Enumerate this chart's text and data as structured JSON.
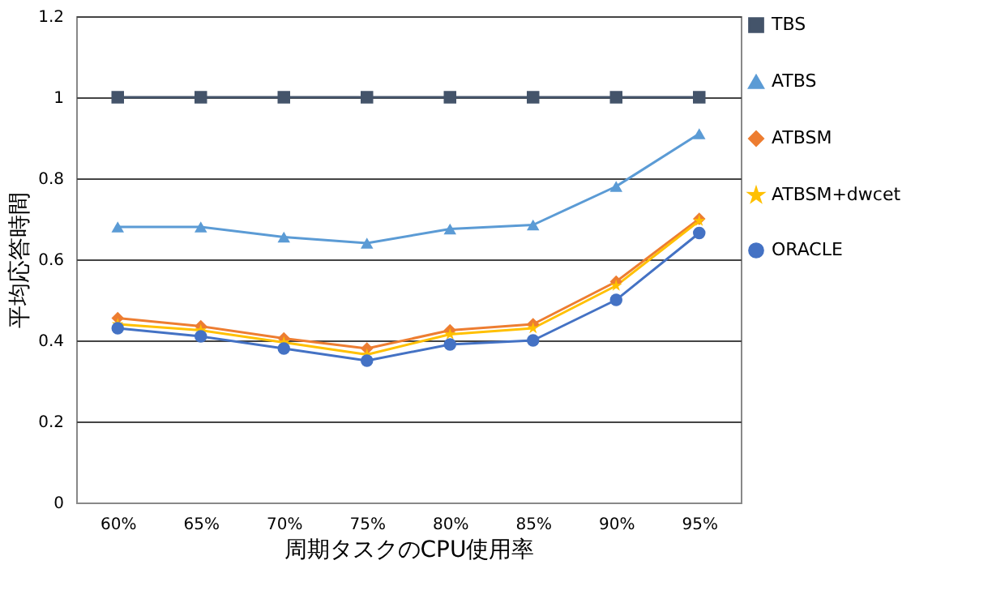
{
  "chart_data": {
    "type": "line",
    "xlabel": "周期タスクのCPU使用率",
    "ylabel": "平均応答時間",
    "categories": [
      "60%",
      "65%",
      "70%",
      "75%",
      "80%",
      "85%",
      "90%",
      "95%"
    ],
    "series": [
      {
        "name": "TBS",
        "color": "#44546a",
        "marker": "square",
        "values": [
          1,
          1,
          1,
          1,
          1,
          1,
          1,
          1
        ]
      },
      {
        "name": "ATBS",
        "color": "#5b9bd5",
        "marker": "triangle",
        "values": [
          0.68,
          0.68,
          0.655,
          0.64,
          0.675,
          0.685,
          0.78,
          0.91
        ]
      },
      {
        "name": "ATBSM",
        "color": "#ed7d31",
        "marker": "diamond",
        "values": [
          0.455,
          0.435,
          0.405,
          0.38,
          0.425,
          0.44,
          0.545,
          0.7
        ]
      },
      {
        "name": "ATBSM+dwcet",
        "color": "#ffc000",
        "marker": "star",
        "values": [
          0.44,
          0.425,
          0.395,
          0.365,
          0.415,
          0.43,
          0.535,
          0.695
        ]
      },
      {
        "name": "ORACLE",
        "color": "#4472c4",
        "marker": "circle",
        "values": [
          0.43,
          0.41,
          0.38,
          0.35,
          0.39,
          0.4,
          0.5,
          0.665
        ]
      }
    ],
    "ylim": [
      0,
      1.2
    ],
    "yticks": [
      0,
      0.2,
      0.4,
      0.6,
      0.8,
      1,
      1.2
    ],
    "grid": "y",
    "legend": "right",
    "line_style": "solid"
  }
}
